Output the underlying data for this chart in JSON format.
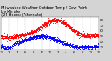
{
  "title": "Milwaukee Weather Outdoor Temp / Dew Point\nby Minute\n(24 Hours) (Alternate)",
  "bg_color": "#d4d4d4",
  "plot_bg_color": "#ffffff",
  "grid_color": "#888888",
  "red_color": "#ff0000",
  "blue_color": "#0000ff",
  "ylim": [
    25,
    85
  ],
  "yticks": [
    30,
    40,
    50,
    60,
    70,
    80
  ],
  "num_points": 1440,
  "title_fontsize": 3.8,
  "tick_fontsize": 2.8,
  "marker_size": 0.4
}
